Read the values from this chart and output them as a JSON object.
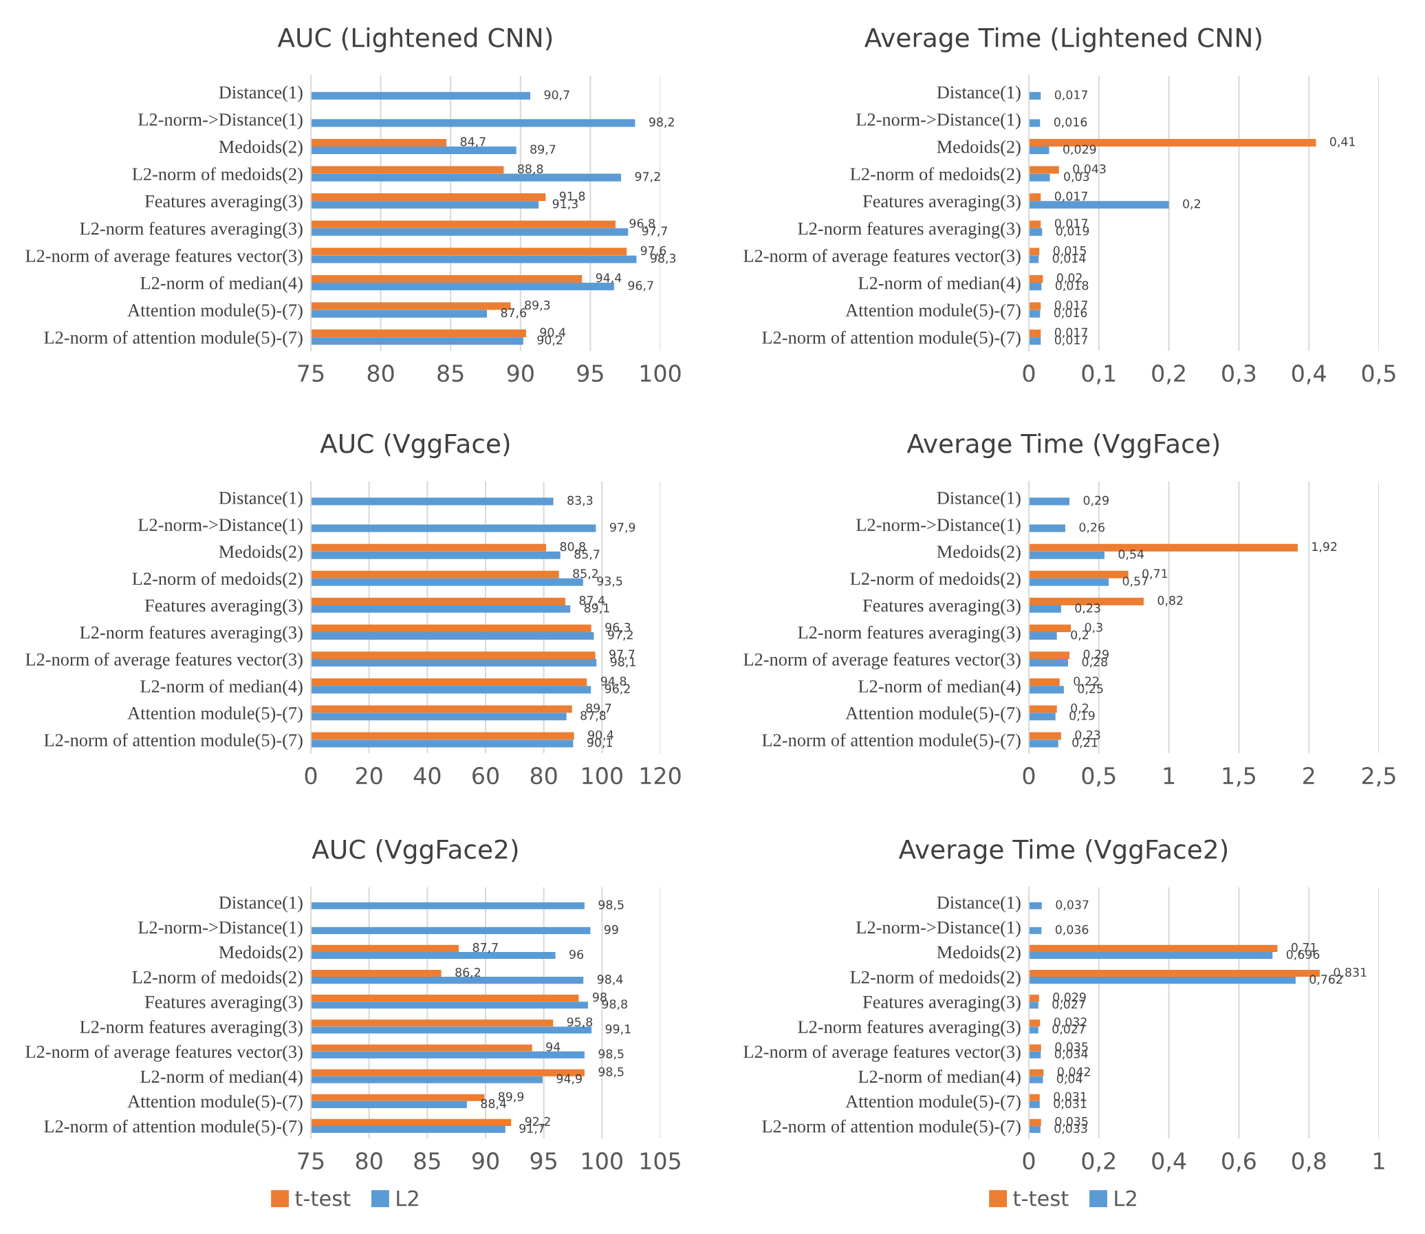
{
  "chart_data": [
    {
      "type": "bar",
      "orientation": "horizontal",
      "title": "AUC (Lightened CNN)",
      "grid": "x",
      "categories": [
        "Distance(1)",
        "L2-norm->Distance(1)",
        "Medoids(2)",
        "L2-norm of medoids(2)",
        "Features averaging(3)",
        "L2-norm features averaging(3)",
        "L2-norm of average features vector(3)",
        "L2-norm of median(4)",
        "Attention module(5)-(7)",
        "L2-norm of attention module(5)-(7)"
      ],
      "xlim": [
        75,
        100
      ],
      "xticks": [
        75,
        80,
        85,
        90,
        95,
        100
      ],
      "series": [
        {
          "color": "#ed7d31",
          "values": [
            null,
            null,
            84.7,
            88.8,
            91.8,
            96.8,
            97.6,
            94.4,
            89.3,
            90.4
          ],
          "value_labels": [
            null,
            null,
            "84,7",
            "88,8",
            "91,8",
            "96,8",
            "97,6",
            "94,4",
            "89,3",
            "90,4"
          ]
        },
        {
          "color": "#5b9bd5",
          "values": [
            90.7,
            98.2,
            89.7,
            97.2,
            91.3,
            97.7,
            98.3,
            96.7,
            87.6,
            90.2
          ],
          "value_labels": [
            "90,7",
            "98,2",
            "89,7",
            "97,2",
            "91,3",
            "97,7",
            "98,3",
            "96,7",
            "87,6",
            "90,2"
          ]
        }
      ]
    },
    {
      "type": "bar",
      "orientation": "horizontal",
      "title": "Average Time (Lightened CNN)",
      "grid": "x",
      "categories": [
        "Distance(1)",
        "L2-norm->Distance(1)",
        "Medoids(2)",
        "L2-norm of medoids(2)",
        "Features averaging(3)",
        "L2-norm features averaging(3)",
        "L2-norm of average features vector(3)",
        "L2-norm of median(4)",
        "Attention module(5)-(7)",
        "L2-norm of attention module(5)-(7)"
      ],
      "xlim": [
        0,
        0.5
      ],
      "xticks": [
        0,
        {
          "value": 0.1,
          "label": "0,1"
        },
        {
          "value": 0.2,
          "label": "0,2"
        },
        {
          "value": 0.3,
          "label": "0,3"
        },
        {
          "value": 0.4,
          "label": "0,4"
        },
        {
          "value": 0.5,
          "label": "0,5"
        }
      ],
      "series": [
        {
          "color": "#ed7d31",
          "values": [
            null,
            null,
            0.41,
            0.043,
            0.017,
            0.017,
            0.015,
            0.02,
            0.017,
            0.017
          ],
          "value_labels": [
            null,
            null,
            "0,41",
            "0,043",
            "0,017",
            "0,017",
            "0,015",
            "0,02",
            "0,017",
            "0,017"
          ]
        },
        {
          "color": "#5b9bd5",
          "values": [
            0.017,
            0.016,
            0.029,
            0.03,
            0.2,
            0.019,
            0.014,
            0.018,
            0.016,
            0.017
          ],
          "value_labels": [
            "0,017",
            "0,016",
            "0,029",
            "0,03",
            "0,2",
            "0,019",
            "0,014",
            "0,018",
            "0,016",
            "0,017"
          ]
        }
      ]
    },
    {
      "type": "bar",
      "orientation": "horizontal",
      "title": "AUC (VggFace)",
      "grid": "x",
      "categories": [
        "Distance(1)",
        "L2-norm->Distance(1)",
        "Medoids(2)",
        "L2-norm of medoids(2)",
        "Features averaging(3)",
        "L2-norm features averaging(3)",
        "L2-norm of average features vector(3)",
        "L2-norm of median(4)",
        "Attention module(5)-(7)",
        "L2-norm of attention module(5)-(7)"
      ],
      "xlim": [
        0,
        120
      ],
      "xticks": [
        0,
        20,
        40,
        60,
        80,
        100,
        120
      ],
      "series": [
        {
          "color": "#ed7d31",
          "values": [
            null,
            null,
            80.8,
            85.2,
            87.4,
            96.3,
            97.7,
            94.8,
            89.7,
            90.4
          ],
          "value_labels": [
            null,
            null,
            "80,8",
            "85,2",
            "87,4",
            "96,3",
            "97,7",
            "94,8",
            "89,7",
            "90,4"
          ]
        },
        {
          "color": "#5b9bd5",
          "values": [
            83.3,
            97.9,
            85.7,
            93.5,
            89.1,
            97.2,
            98.1,
            96.2,
            87.8,
            90.1
          ],
          "value_labels": [
            "83,3",
            "97,9",
            "85,7",
            "93,5",
            "89,1",
            "97,2",
            "98,1",
            "96,2",
            "87,8",
            "90,1"
          ]
        }
      ]
    },
    {
      "type": "bar",
      "orientation": "horizontal",
      "title": "Average Time (VggFace)",
      "grid": "x",
      "categories": [
        "Distance(1)",
        "L2-norm->Distance(1)",
        "Medoids(2)",
        "L2-norm of medoids(2)",
        "Features averaging(3)",
        "L2-norm features averaging(3)",
        "L2-norm of average features vector(3)",
        "L2-norm of median(4)",
        "Attention module(5)-(7)",
        "L2-norm of attention module(5)-(7)"
      ],
      "xlim": [
        0,
        2.5
      ],
      "xticks": [
        0,
        {
          "value": 0.5,
          "label": "0,5"
        },
        1,
        {
          "value": 1.5,
          "label": "1,5"
        },
        2,
        {
          "value": 2.5,
          "label": "2,5"
        }
      ],
      "series": [
        {
          "color": "#ed7d31",
          "values": [
            null,
            null,
            1.92,
            0.71,
            0.82,
            0.3,
            0.29,
            0.22,
            0.2,
            0.23
          ],
          "value_labels": [
            null,
            null,
            "1,92",
            "0,71",
            "0,82",
            "0,3",
            "0,29",
            "0,22",
            "0,2",
            "0,23"
          ]
        },
        {
          "color": "#5b9bd5",
          "values": [
            0.29,
            0.26,
            0.54,
            0.57,
            0.23,
            0.2,
            0.28,
            0.25,
            0.19,
            0.21
          ],
          "value_labels": [
            "0,29",
            "0,26",
            "0,54",
            "0,57",
            "0,23",
            "0,2",
            "0,28",
            "0,25",
            "0,19",
            "0,21"
          ]
        }
      ]
    },
    {
      "type": "bar",
      "orientation": "horizontal",
      "title": "AUC (VggFace2)",
      "grid": "x",
      "legend": "bottom",
      "categories": [
        "Distance(1)",
        "L2-norm->Distance(1)",
        "Medoids(2)",
        "L2-norm of medoids(2)",
        "Features averaging(3)",
        "L2-norm features averaging(3)",
        "L2-norm of average features vector(3)",
        "L2-norm of median(4)",
        "Attention module(5)-(7)",
        "L2-norm of attention module(5)-(7)"
      ],
      "xlim": [
        75,
        105
      ],
      "xticks": [
        75,
        80,
        85,
        90,
        95,
        100,
        105
      ],
      "series": [
        {
          "name": "t-test",
          "color": "#ed7d31",
          "values": [
            null,
            null,
            87.7,
            86.2,
            98,
            95.8,
            94,
            98.5,
            89.9,
            92.2
          ],
          "value_labels": [
            null,
            null,
            "87,7",
            "86,2",
            "98",
            "95,8",
            "94",
            "98,5",
            "89,9",
            "92,2"
          ]
        },
        {
          "name": "L2",
          "color": "#5b9bd5",
          "values": [
            98.5,
            99,
            96,
            98.4,
            98.8,
            99.1,
            98.5,
            94.9,
            88.4,
            91.7
          ],
          "value_labels": [
            "98,5",
            "99",
            "96",
            "98,4",
            "98,8",
            "99,1",
            "98,5",
            "94,9",
            "88,4",
            "91,7"
          ]
        }
      ]
    },
    {
      "type": "bar",
      "orientation": "horizontal",
      "title": "Average Time (VggFace2)",
      "grid": "x",
      "legend": "bottom",
      "categories": [
        "Distance(1)",
        "L2-norm->Distance(1)",
        "Medoids(2)",
        "L2-norm of medoids(2)",
        "Features averaging(3)",
        "L2-norm features averaging(3)",
        "L2-norm of average features vector(3)",
        "L2-norm of median(4)",
        "Attention module(5)-(7)",
        "L2-norm of attention module(5)-(7)"
      ],
      "xlim": [
        0,
        1
      ],
      "xticks": [
        0,
        {
          "value": 0.2,
          "label": "0,2"
        },
        {
          "value": 0.4,
          "label": "0,4"
        },
        {
          "value": 0.6,
          "label": "0,6"
        },
        {
          "value": 0.8,
          "label": "0,8"
        },
        1
      ],
      "series": [
        {
          "name": "t-test",
          "color": "#ed7d31",
          "values": [
            null,
            null,
            0.71,
            0.831,
            0.029,
            0.032,
            0.035,
            0.042,
            0.031,
            0.035
          ],
          "value_labels": [
            null,
            null,
            "0,71",
            "0,831",
            "0,029",
            "0,032",
            "0,035",
            "0,042",
            "0,031",
            "0,035"
          ]
        },
        {
          "name": "L2",
          "color": "#5b9bd5",
          "values": [
            0.037,
            0.036,
            0.696,
            0.762,
            0.027,
            0.027,
            0.034,
            0.04,
            0.031,
            0.033
          ],
          "value_labels": [
            "0,037",
            "0,036",
            "0,696",
            "0,762",
            "0,027",
            "0,027",
            "0,034",
            "0,04",
            "0,031",
            "0,033"
          ]
        }
      ]
    }
  ]
}
